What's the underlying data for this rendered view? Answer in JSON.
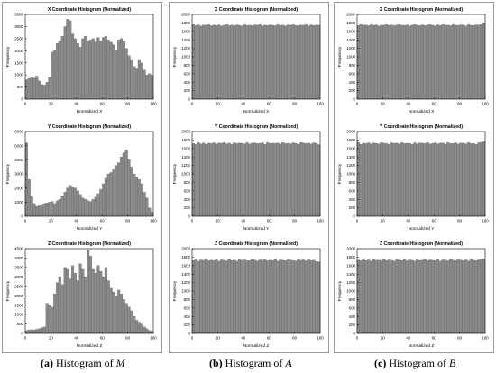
{
  "captions": [
    {
      "tag": "(a)",
      "text": "Histogram of",
      "var": "M"
    },
    {
      "tag": "(b)",
      "text": "Histogram of",
      "var": "A"
    },
    {
      "tag": "(c)",
      "text": "Histogram of",
      "var": "B"
    }
  ],
  "chart_data": [
    {
      "type": "bar",
      "title": "X Coordinate Histogram (Normalized)",
      "xlabel": "Normalized X",
      "ylabel": "Frequency",
      "xlim": [
        0,
        100
      ],
      "ylim": [
        0,
        3500
      ],
      "xticks": [
        0,
        20,
        40,
        60,
        80,
        100
      ],
      "yticks": [
        0,
        500,
        1000,
        1500,
        2000,
        2500,
        3000,
        3500
      ],
      "bar_color": "#8a8a8a",
      "bins": 50,
      "values": [
        800,
        850,
        900,
        870,
        950,
        750,
        600,
        580,
        700,
        900,
        1950,
        2000,
        2300,
        2400,
        2600,
        3000,
        3300,
        3250,
        2700,
        2500,
        2300,
        2150,
        2500,
        2600,
        2400,
        2450,
        2500,
        2350,
        2550,
        2400,
        2550,
        2600,
        2450,
        2350,
        2250,
        2000,
        2450,
        2500,
        2400,
        2100,
        1800,
        1600,
        1350,
        1250,
        1600,
        1500,
        1200,
        1000,
        1050,
        980
      ]
    },
    {
      "type": "bar",
      "title": "X Coordinate Histogram (Normalized)",
      "xlabel": "Normalized X",
      "ylabel": "Frequency",
      "xlim": [
        0,
        100
      ],
      "ylim": [
        0,
        2000
      ],
      "xticks": [
        0,
        20,
        40,
        60,
        80,
        100
      ],
      "yticks": [
        0,
        200,
        400,
        600,
        800,
        1000,
        1200,
        1400,
        1600,
        1800,
        2000
      ],
      "bar_color": "#8a8a8a",
      "bins": 50,
      "values": [
        1760,
        1740,
        1755,
        1730,
        1750,
        1745,
        1760,
        1735,
        1750,
        1740,
        1755,
        1730,
        1745,
        1760,
        1740,
        1750,
        1735,
        1755,
        1745,
        1730,
        1760,
        1740,
        1750,
        1735,
        1755,
        1745,
        1760,
        1730,
        1750,
        1740,
        1755,
        1745,
        1735,
        1760,
        1740,
        1750,
        1730,
        1755,
        1745,
        1760,
        1740,
        1735,
        1750,
        1745,
        1760,
        1730,
        1755,
        1740,
        1750,
        1745
      ]
    },
    {
      "type": "bar",
      "title": "X Coordinate Histogram (Normalized)",
      "xlabel": "Normalized X",
      "ylabel": "Frequency",
      "xlim": [
        0,
        100
      ],
      "ylim": [
        0,
        2000
      ],
      "xticks": [
        0,
        20,
        40,
        60,
        80,
        100
      ],
      "yticks": [
        0,
        200,
        400,
        600,
        800,
        1000,
        1200,
        1400,
        1600,
        1800,
        2000
      ],
      "bar_color": "#8a8a8a",
      "bins": 50,
      "values": [
        1740,
        1760,
        1745,
        1750,
        1735,
        1760,
        1745,
        1755,
        1730,
        1750,
        1745,
        1760,
        1740,
        1755,
        1735,
        1750,
        1760,
        1745,
        1740,
        1755,
        1730,
        1750,
        1760,
        1745,
        1735,
        1755,
        1740,
        1750,
        1760,
        1745,
        1730,
        1755,
        1740,
        1760,
        1745,
        1750,
        1735,
        1760,
        1745,
        1740,
        1755,
        1750,
        1730,
        1760,
        1745,
        1740,
        1755,
        1750,
        1760,
        1800
      ]
    },
    {
      "type": "bar",
      "title": "Y Coordinate Histogram (Normalized)",
      "xlabel": "Normalized Y",
      "ylabel": "Frequency",
      "xlim": [
        0,
        100
      ],
      "ylim": [
        0,
        6000
      ],
      "xticks": [
        0,
        20,
        40,
        60,
        80,
        100
      ],
      "yticks": [
        0,
        1000,
        2000,
        3000,
        4000,
        5000,
        6000
      ],
      "bar_color": "#8a8a8a",
      "bins": 50,
      "values": [
        5200,
        2600,
        1400,
        900,
        700,
        750,
        850,
        900,
        950,
        1000,
        1050,
        900,
        1100,
        1200,
        1450,
        1700,
        2000,
        2200,
        2100,
        2000,
        1800,
        1550,
        1300,
        1200,
        1100,
        1050,
        1200,
        1350,
        1600,
        1900,
        2300,
        2700,
        3000,
        3100,
        3300,
        3600,
        3800,
        4200,
        4500,
        4700,
        4000,
        3500,
        3000,
        2800,
        2600,
        2300,
        1700,
        1300,
        600,
        300
      ]
    },
    {
      "type": "bar",
      "title": "Y Coordinate Histogram (Normalized)",
      "xlabel": "Normalized Y",
      "ylabel": "Frequency",
      "xlim": [
        0,
        100
      ],
      "ylim": [
        0,
        2000
      ],
      "xticks": [
        0,
        20,
        40,
        60,
        80,
        100
      ],
      "yticks": [
        0,
        200,
        400,
        600,
        800,
        1000,
        1200,
        1400,
        1600,
        1800,
        2000
      ],
      "bar_color": "#8a8a8a",
      "bins": 50,
      "values": [
        1720,
        1700,
        1740,
        1710,
        1730,
        1700,
        1725,
        1715,
        1735,
        1705,
        1730,
        1720,
        1740,
        1710,
        1725,
        1700,
        1735,
        1715,
        1730,
        1720,
        1710,
        1740,
        1705,
        1725,
        1730,
        1715,
        1720,
        1735,
        1700,
        1740,
        1715,
        1725,
        1720,
        1730,
        1705,
        1740,
        1715,
        1725,
        1710,
        1735,
        1720,
        1700,
        1740,
        1730,
        1715,
        1725,
        1705,
        1735,
        1720,
        1690
      ]
    },
    {
      "type": "bar",
      "title": "Y Coordinate Histogram (Normalized)",
      "xlabel": "Normalized Y",
      "ylabel": "Frequency",
      "xlim": [
        0,
        100
      ],
      "ylim": [
        0,
        2000
      ],
      "xticks": [
        0,
        20,
        40,
        60,
        80,
        100
      ],
      "yticks": [
        0,
        200,
        400,
        600,
        800,
        1000,
        1200,
        1400,
        1600,
        1800,
        2000
      ],
      "bar_color": "#8a8a8a",
      "bins": 50,
      "values": [
        1740,
        1700,
        1725,
        1715,
        1735,
        1705,
        1730,
        1720,
        1710,
        1740,
        1725,
        1715,
        1700,
        1735,
        1720,
        1730,
        1705,
        1740,
        1715,
        1725,
        1720,
        1700,
        1735,
        1710,
        1730,
        1725,
        1715,
        1740,
        1705,
        1720,
        1735,
        1710,
        1725,
        1730,
        1700,
        1740,
        1715,
        1720,
        1735,
        1705,
        1730,
        1725,
        1710,
        1740,
        1715,
        1720,
        1700,
        1735,
        1745,
        1760
      ]
    },
    {
      "type": "bar",
      "title": "Z Coordinate Histogram (Normalized)",
      "xlabel": "Normalized Z",
      "ylabel": "Frequency",
      "xlim": [
        0,
        100
      ],
      "ylim": [
        0,
        4500
      ],
      "xticks": [
        0,
        20,
        40,
        60,
        80,
        100
      ],
      "yticks": [
        0,
        500,
        1000,
        1500,
        2000,
        2500,
        3000,
        3500,
        4000,
        4500
      ],
      "bar_color": "#8a8a8a",
      "bins": 50,
      "values": [
        150,
        180,
        200,
        180,
        220,
        250,
        300,
        350,
        1600,
        1500,
        1400,
        2100,
        2700,
        3000,
        2600,
        3500,
        3400,
        2900,
        3600,
        3200,
        2800,
        3700,
        3400,
        3000,
        4400,
        4100,
        3400,
        3200,
        3600,
        3300,
        3000,
        3500,
        2800,
        2400,
        2200,
        2000,
        2300,
        2100,
        1800,
        1600,
        1400,
        1200,
        900,
        700,
        600,
        500,
        350,
        250,
        150,
        100
      ]
    },
    {
      "type": "bar",
      "title": "Z Coordinate Histogram (Normalized)",
      "xlabel": "Normalized Z",
      "ylabel": "Frequency",
      "xlim": [
        0,
        100
      ],
      "ylim": [
        0,
        2000
      ],
      "xticks": [
        0,
        20,
        40,
        60,
        80,
        100
      ],
      "yticks": [
        0,
        200,
        400,
        600,
        800,
        1000,
        1200,
        1400,
        1600,
        1800,
        2000
      ],
      "bar_color": "#8a8a8a",
      "bins": 50,
      "values": [
        1720,
        1740,
        1710,
        1735,
        1725,
        1745,
        1715,
        1730,
        1720,
        1740,
        1705,
        1735,
        1725,
        1715,
        1745,
        1720,
        1730,
        1710,
        1740,
        1725,
        1735,
        1715,
        1720,
        1745,
        1730,
        1710,
        1735,
        1725,
        1740,
        1715,
        1730,
        1720,
        1745,
        1710,
        1735,
        1725,
        1715,
        1740,
        1730,
        1720,
        1710,
        1745,
        1725,
        1735,
        1715,
        1740,
        1720,
        1730,
        1700,
        1690
      ]
    },
    {
      "type": "bar",
      "title": "Z Coordinate Histogram (Normalized)",
      "xlabel": "Normalized Z",
      "ylabel": "Frequency",
      "xlim": [
        0,
        100
      ],
      "ylim": [
        0,
        2000
      ],
      "xticks": [
        0,
        20,
        40,
        60,
        80,
        100
      ],
      "yticks": [
        0,
        200,
        400,
        600,
        800,
        1000,
        1200,
        1400,
        1600,
        1800,
        2000
      ],
      "bar_color": "#8a8a8a",
      "bins": 50,
      "values": [
        1730,
        1715,
        1745,
        1720,
        1735,
        1710,
        1740,
        1725,
        1730,
        1715,
        1745,
        1720,
        1735,
        1725,
        1710,
        1740,
        1730,
        1720,
        1745,
        1715,
        1735,
        1725,
        1710,
        1740,
        1720,
        1730,
        1745,
        1715,
        1735,
        1725,
        1720,
        1740,
        1710,
        1735,
        1730,
        1715,
        1745,
        1725,
        1720,
        1740,
        1730,
        1715,
        1735,
        1710,
        1745,
        1725,
        1720,
        1735,
        1740,
        1760
      ]
    }
  ]
}
